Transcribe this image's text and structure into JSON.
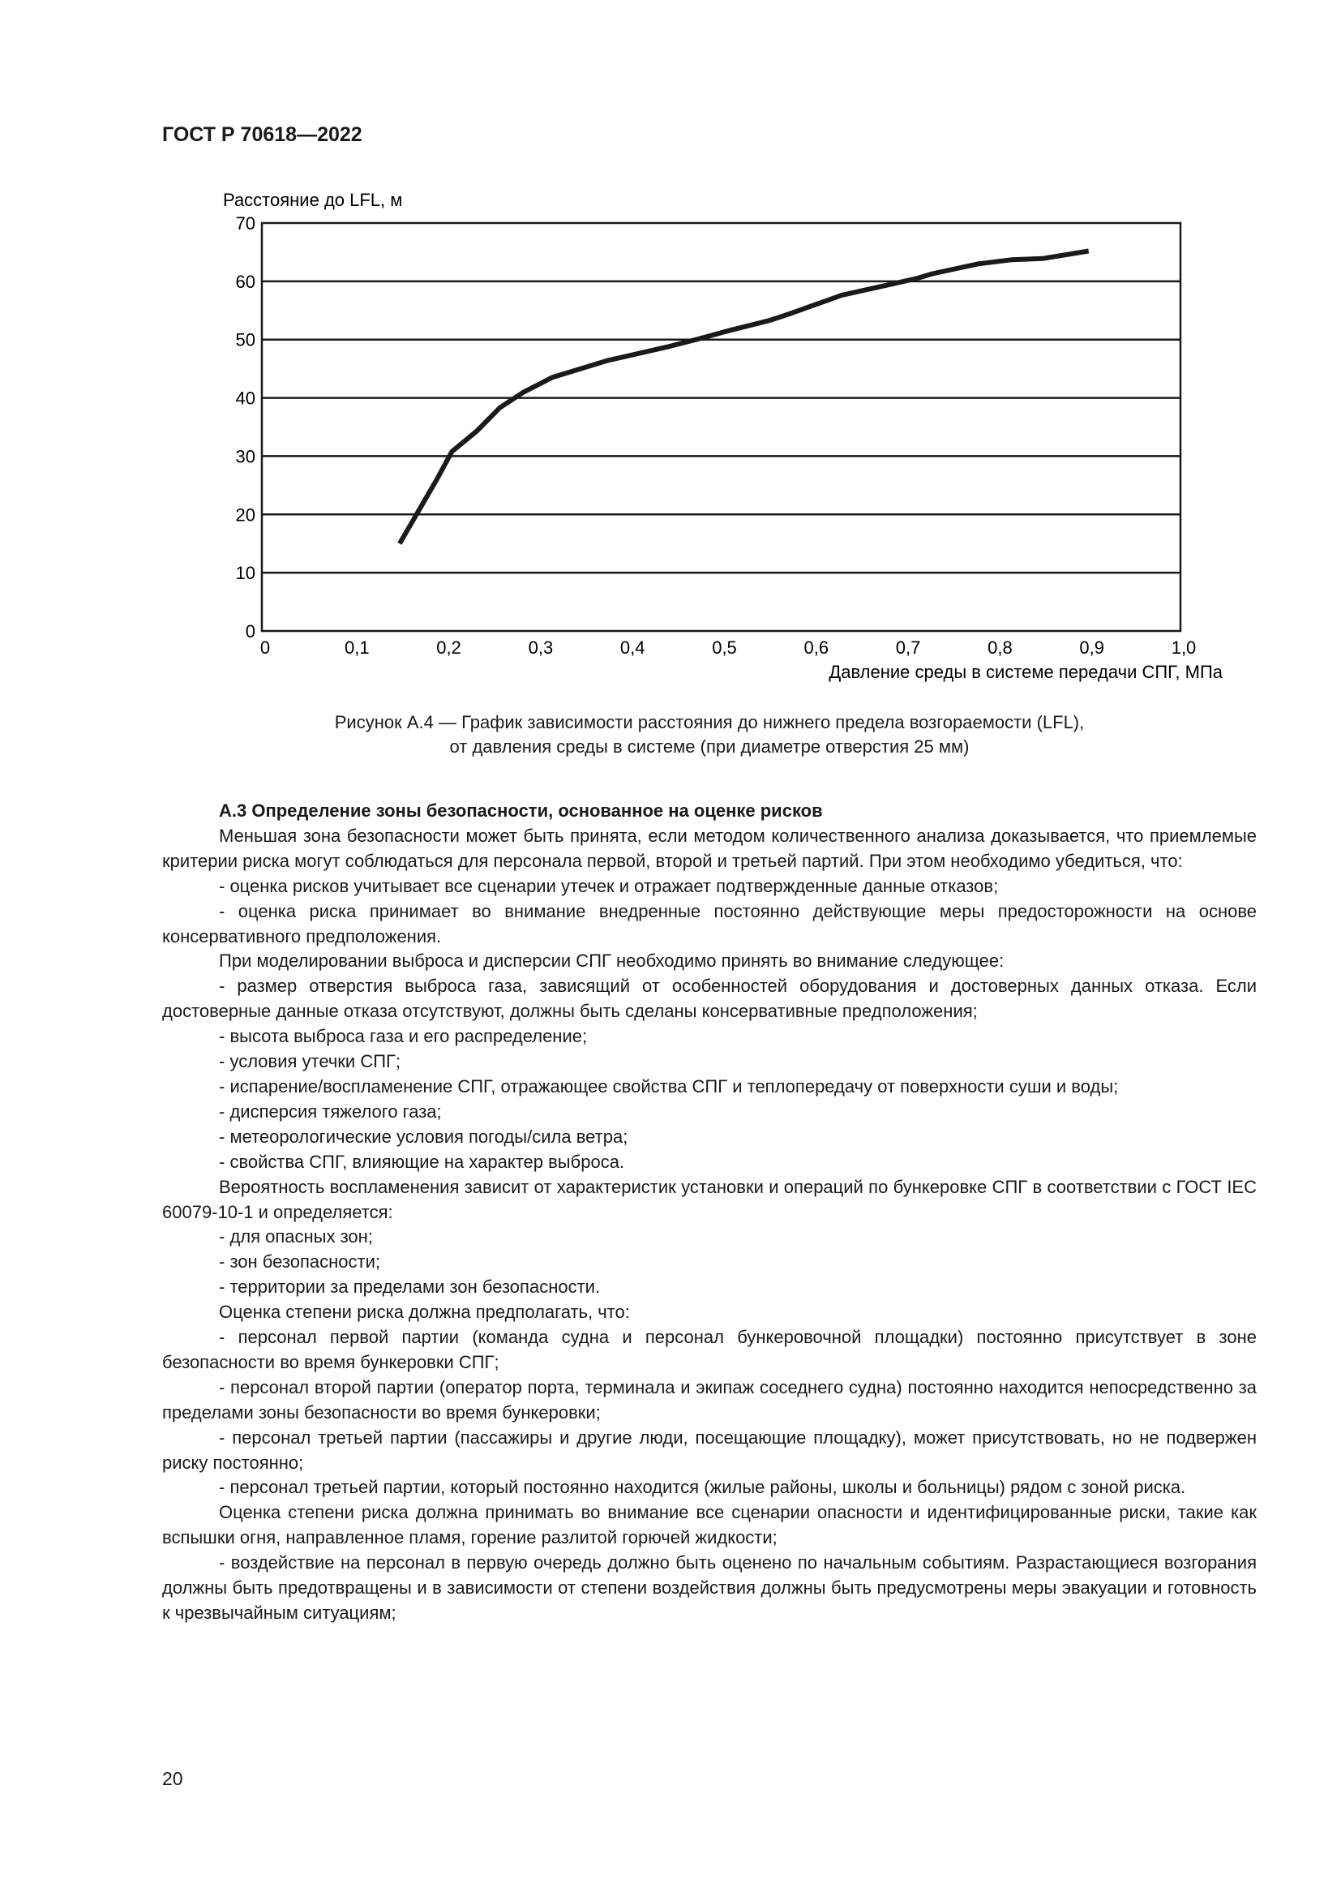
{
  "header": {
    "doc_id": "ГОСТ Р 70618—2022"
  },
  "chart_data": {
    "type": "line",
    "ylabel": "Расстояние до LFL, м",
    "xlabel": "Давление среды в системе передачи СПГ, МПа",
    "xlim": [
      0,
      1.0
    ],
    "ylim": [
      0,
      70
    ],
    "xticks": [
      "0",
      "0,1",
      "0,2",
      "0,3",
      "0,4",
      "0,5",
      "0,6",
      "0,7",
      "0,8",
      "0,9",
      "1,0"
    ],
    "yticks": [
      "0",
      "10",
      "20",
      "30",
      "40",
      "50",
      "60",
      "70"
    ],
    "grid": "horizontal",
    "color": "#1a1a1a",
    "x": [
      0.15,
      0.19,
      0.207,
      0.234,
      0.259,
      0.284,
      0.316,
      0.376,
      0.44,
      0.475,
      0.51,
      0.553,
      0.574,
      0.631,
      0.688,
      0.713,
      0.73,
      0.78,
      0.816,
      0.85,
      0.9
    ],
    "y": [
      15,
      25.9,
      30.8,
      34.3,
      38.3,
      40.9,
      43.5,
      46.4,
      48.7,
      50.1,
      51.6,
      53.3,
      54.4,
      57.6,
      59.6,
      60.5,
      61.3,
      63,
      63.7,
      63.9,
      65.2
    ]
  },
  "caption": {
    "line1": "Рисунок А.4 — График зависимости расстояния до нижнего предела возгораемости (LFL),",
    "line2": "от давления среды в системе (при диаметре отверстия 25 мм)"
  },
  "section": {
    "heading": "А.3 Определение зоны безопасности, основанное на оценке рисков",
    "paragraphs": [
      "Меньшая зона безопасности может быть принята, если методом количественного анализа доказывается, что приемлемые критерии риска могут соблюдаться для персонала первой, второй и третьей партий. При этом необходимо убедиться, что:",
      "- оценка рисков учитывает все сценарии утечек и отражает подтвержденные данные отказов;",
      "- оценка риска принимает во внимание внедренные постоянно действующие меры предосторожности на основе консервативного предположения.",
      "При моделировании выброса и дисперсии СПГ необходимо принять во внимание следующее:",
      "- размер отверстия выброса газа, зависящий от особенностей оборудования и достоверных данных отказа. Если достоверные данные отказа отсутствуют, должны быть сделаны консервативные предположения;",
      "- высота выброса газа и его распределение;",
      "- условия утечки СПГ;",
      "- испарение/воспламенение СПГ, отражающее свойства СПГ и теплопередачу от поверхности суши и воды;",
      "- дисперсия тяжелого газа;",
      "- метеорологические условия погоды/сила ветра;",
      "- свойства СПГ, влияющие на характер выброса.",
      "Вероятность воспламенения зависит от характеристик установки и операций по бункеровке СПГ в соответствии с ГОСТ IEC 60079-10-1 и определяется:",
      "- для опасных зон;",
      "- зон безопасности;",
      "- территории за пределами зон безопасности.",
      "Оценка степени риска должна предполагать, что:",
      "- персонал первой партии (команда судна и персонал бункеровочной площадки) постоянно присутствует в зоне безопасности во время бункеровки СПГ;",
      "- персонал второй партии (оператор порта, терминала и экипаж соседнего судна) постоянно находится непосредственно за пределами зоны безопасности во время бункеровки;",
      "- персонал третьей партии (пассажиры и другие люди, посещающие площадку), может присутствовать, но не подвержен риску постоянно;",
      "- персонал третьей партии, который постоянно находится (жилые районы, школы и больницы) рядом с зоной риска.",
      "Оценка степени риска должна принимать во внимание все сценарии опасности и идентифицированные риски, такие как вспышки огня, направленное пламя, горение разлитой горючей жидкости;",
      "- воздействие на персонал в первую очередь должно быть оценено по начальным событиям. Разрастающиеся возгорания должны быть предотвращены и в зависимости от степени воздействия должны быть предусмотрены меры эвакуации и готовность к чрезвычайным ситуациям;"
    ]
  },
  "footer": {
    "page_number": "20"
  }
}
